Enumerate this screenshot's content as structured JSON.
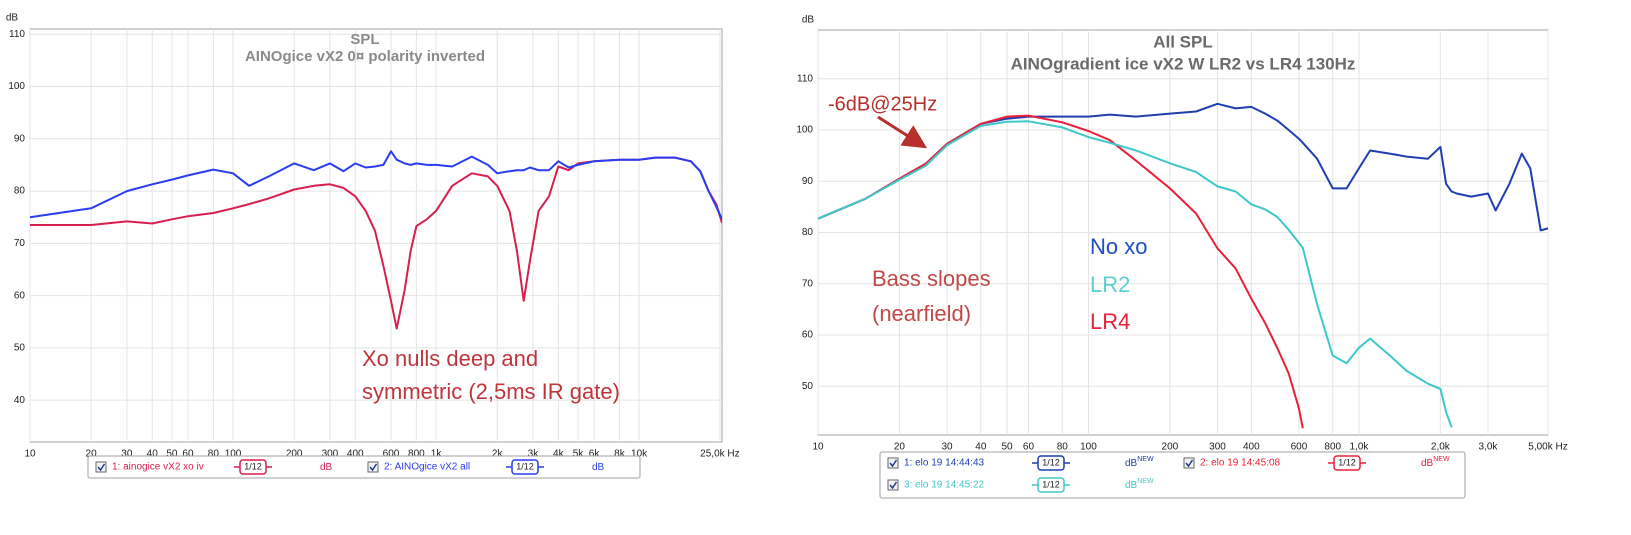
{
  "chart_data": [
    {
      "type": "line",
      "title": "SPL",
      "subtitle": "AINOgice vX2 0¤ polarity inverted",
      "y_label": "dB",
      "log_x": true,
      "grid": true,
      "xlim": [
        10,
        25600
      ],
      "ylim": [
        32,
        111
      ],
      "xticks": [
        10,
        20,
        30,
        40,
        50,
        60,
        80,
        100,
        200,
        300,
        400,
        600,
        800,
        {
          "value": 1000,
          "label": "1k"
        },
        {
          "value": 2000,
          "label": "2k"
        },
        {
          "value": 3000,
          "label": "3k"
        },
        {
          "value": 4000,
          "label": "4k"
        },
        {
          "value": 5000,
          "label": "5k"
        },
        {
          "value": 6000,
          "label": "6k"
        },
        {
          "value": 8000,
          "label": "8k"
        },
        {
          "value": 10000,
          "label": "10k"
        },
        {
          "value": 25000,
          "label": "25,0k Hz"
        }
      ],
      "yticks": [
        40,
        50,
        60,
        70,
        80,
        90,
        100,
        110
      ],
      "x": [
        10,
        20,
        30,
        40,
        50,
        60,
        80,
        100,
        120,
        150,
        200,
        250,
        300,
        350,
        400,
        450,
        500,
        550,
        600,
        640,
        700,
        750,
        800,
        900,
        1000,
        1200,
        1500,
        1800,
        2000,
        2300,
        2500,
        2700,
        2900,
        3200,
        3600,
        4000,
        4500,
        5000,
        6000,
        8000,
        10000,
        12000,
        15000,
        18000,
        20000,
        22000,
        24000,
        25600
      ],
      "series": [
        {
          "name": "1: ainogice vX2 xo iv",
          "color": "#d81e4e",
          "smoothing": "1/12",
          "unit": "dB",
          "values": [
            73.5,
            73.5,
            74.2,
            73.8,
            74.6,
            75.2,
            75.8,
            76.7,
            77.5,
            78.6,
            80.3,
            81,
            81.3,
            80.6,
            79,
            76.2,
            72.4,
            65.7,
            59,
            53.7,
            61,
            68.6,
            73.3,
            74.6,
            76.2,
            81,
            83.4,
            82.8,
            81,
            76.2,
            68.6,
            59,
            66.7,
            76.2,
            79,
            84.7,
            84,
            85.3,
            85.7,
            86,
            86,
            86.4,
            86.4,
            85.7,
            83.8,
            80,
            77.5,
            73.9
          ]
        },
        {
          "name": "2: AINOgice vX2 all",
          "color": "#2a3df0",
          "smoothing": "1/12",
          "unit": "dB",
          "values": [
            75,
            76.7,
            80,
            81.3,
            82.2,
            83,
            84.1,
            83.4,
            81,
            82.8,
            85.3,
            84,
            85.3,
            83.8,
            85.3,
            84.5,
            84.7,
            85,
            87.6,
            86,
            85.3,
            85,
            85.3,
            85,
            85,
            84.7,
            86.6,
            85,
            83.4,
            83.8,
            84,
            84,
            84.5,
            84,
            84,
            85.7,
            84.5,
            85,
            85.7,
            86,
            86,
            86.4,
            86.4,
            85.7,
            83.8,
            80,
            77,
            74.6
          ]
        }
      ],
      "annotations": [
        {
          "lines": [
            "Xo nulls deep and",
            "symmetric (2,5ms IR gate)"
          ],
          "color": "#c0343c"
        }
      ]
    },
    {
      "type": "line",
      "title": "All SPL",
      "subtitle": "AINOgradient ice vX2 W LR2 vs LR4 130Hz",
      "y_label": "dB",
      "log_x": true,
      "grid": true,
      "xlim": [
        10,
        5000
      ],
      "ylim": [
        40.5,
        119.5
      ],
      "xticks": [
        10,
        20,
        30,
        40,
        50,
        60,
        80,
        100,
        200,
        300,
        400,
        600,
        800,
        {
          "value": 1000,
          "label": "1,0k"
        },
        {
          "value": 2000,
          "label": "2,0k"
        },
        {
          "value": 3000,
          "label": "3,0k"
        },
        {
          "value": 5000,
          "label": "5,00k Hz"
        }
      ],
      "yticks": [
        50,
        60,
        70,
        80,
        90,
        100,
        110
      ],
      "x": [
        10,
        15,
        20,
        25,
        30,
        40,
        50,
        60,
        80,
        100,
        120,
        150,
        200,
        250,
        300,
        350,
        400,
        450,
        500,
        550,
        600,
        620,
        700,
        800,
        900,
        1000,
        1100,
        1300,
        1500,
        1800,
        2000,
        2100,
        2200,
        2300,
        2600,
        3000,
        3200,
        3600,
        4000,
        4300,
        4700,
        5000
      ],
      "series": [
        {
          "name": "1: elo 19 14:44:43",
          "color": "#1e3fae",
          "smoothing": "1/12",
          "unit": "dB",
          "unit_tag": "NEW",
          "values": [
            82.7,
            86.6,
            90.5,
            93.4,
            97.3,
            101.2,
            102.2,
            102.6,
            102.6,
            102.6,
            103,
            102.6,
            103.2,
            103.6,
            105.1,
            104.2,
            104.5,
            103.2,
            101.8,
            100,
            98.3,
            97.5,
            94.4,
            88.6,
            88.6,
            92.5,
            96,
            95.4,
            94.8,
            94.4,
            96.7,
            89.5,
            88,
            87.6,
            87,
            87.6,
            84.3,
            89.5,
            95.4,
            92.5,
            80.4,
            80.8
          ]
        },
        {
          "name": "2: elo 19 14:45:08",
          "color": "#e8203a",
          "smoothing": "1/12",
          "unit": "dB",
          "unit_tag": "NEW",
          "values": [
            82.7,
            86.6,
            90.5,
            93.4,
            97.3,
            101.2,
            102.6,
            102.8,
            101.5,
            99.8,
            98,
            94,
            88.6,
            83.7,
            76.9,
            73,
            67.1,
            62.3,
            57.4,
            52.5,
            45.7,
            41.8,
            null,
            null,
            null,
            null,
            null,
            null,
            null,
            null,
            null,
            null,
            null,
            null,
            null,
            null,
            null,
            null,
            null,
            null,
            null,
            null
          ]
        },
        {
          "name": "3: elo 19 14:45:22",
          "color": "#3ec8c8",
          "smoothing": "1/12",
          "unit": "dB",
          "unit_tag": "NEW",
          "values": [
            82.7,
            86.6,
            90.3,
            93,
            97,
            100.8,
            101.6,
            101.7,
            100.5,
            98.6,
            97.5,
            96,
            93.5,
            91.8,
            89,
            88,
            85.5,
            84.5,
            83,
            80.5,
            78,
            77,
            66,
            56,
            54.5,
            57.5,
            59.3,
            56,
            53,
            50.5,
            49.5,
            45,
            42,
            null,
            null,
            null,
            null,
            null,
            null,
            null,
            null,
            null
          ]
        }
      ],
      "annotations": [
        {
          "lines": [
            "-6dB@25Hz"
          ],
          "color": "#b8302c"
        },
        {
          "lines": [
            "Bass slopes",
            "(nearfield)"
          ],
          "color": "#c04848"
        },
        {
          "lines": [
            "No xo"
          ],
          "color": "#1e50c0"
        },
        {
          "lines": [
            "LR2"
          ],
          "color": "#5ccfd0"
        },
        {
          "lines": [
            "LR4"
          ],
          "color": "#e8203a"
        }
      ]
    }
  ]
}
